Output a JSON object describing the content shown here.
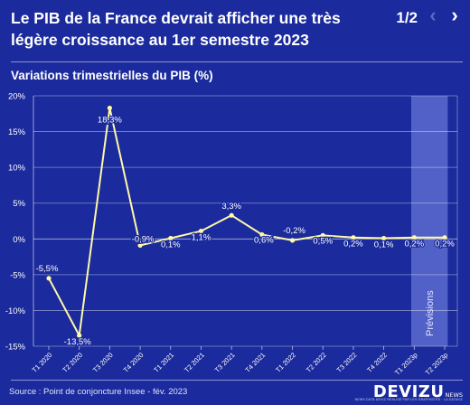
{
  "header": {
    "title": "Le PIB de la France devrait afficher une très légère croissance au 1er semestre 2023",
    "pager": "1/2",
    "prev_icon": "chevron-left-icon",
    "next_icon": "chevron-right-icon"
  },
  "footer": {
    "source": "Source : Point de conjoncture Insee - fév. 2023",
    "brand": "DEVIZU",
    "brand_suffix": "NEWS",
    "brand_tagline": "NEWS DATA DEVIZ RÉALISÉ PAR LES GRAPHISTES · LA DATAVIZ"
  },
  "colors": {
    "background": "#1b2a9c",
    "line": "#fff9a8",
    "forecast_band": "#5c6bd0"
  },
  "chart_data": {
    "type": "line",
    "subtitle": "Variations trimestrielles du PIB (%)",
    "categories": [
      "T1 2020",
      "T2 2020",
      "T3 2020",
      "T4 2020",
      "T1 2021",
      "T2 2021",
      "T3 2021",
      "T4 2021",
      "T1 2022",
      "T2 2022",
      "T3 2022",
      "T4 2022",
      "T1 2023p",
      "T2 2023p"
    ],
    "values": [
      -5.5,
      -13.5,
      18.3,
      -0.9,
      0.1,
      1.1,
      3.3,
      0.6,
      -0.2,
      0.5,
      0.2,
      0.1,
      0.2,
      0.2
    ],
    "data_labels": [
      "-5,5%",
      "-13,5%",
      "18,3%",
      "-0,9%",
      "0,1%",
      "1,1%",
      "3,3%",
      "0,6%",
      "-0,2%",
      "0,5%",
      "0,2%",
      "0,1%",
      "0,2%",
      "0,2%"
    ],
    "yticks": [
      20,
      15,
      10,
      5,
      0,
      -5,
      -10,
      -15
    ],
    "ytick_labels": [
      "20%",
      "15%",
      "10%",
      "5%",
      "0%",
      "-5%",
      "-10%",
      "-15%"
    ],
    "ylim": [
      -15,
      20
    ],
    "grid": true,
    "forecast": {
      "label": "Prévisions",
      "from_category": "T1 2023p",
      "to_category": "T2 2023p"
    }
  }
}
